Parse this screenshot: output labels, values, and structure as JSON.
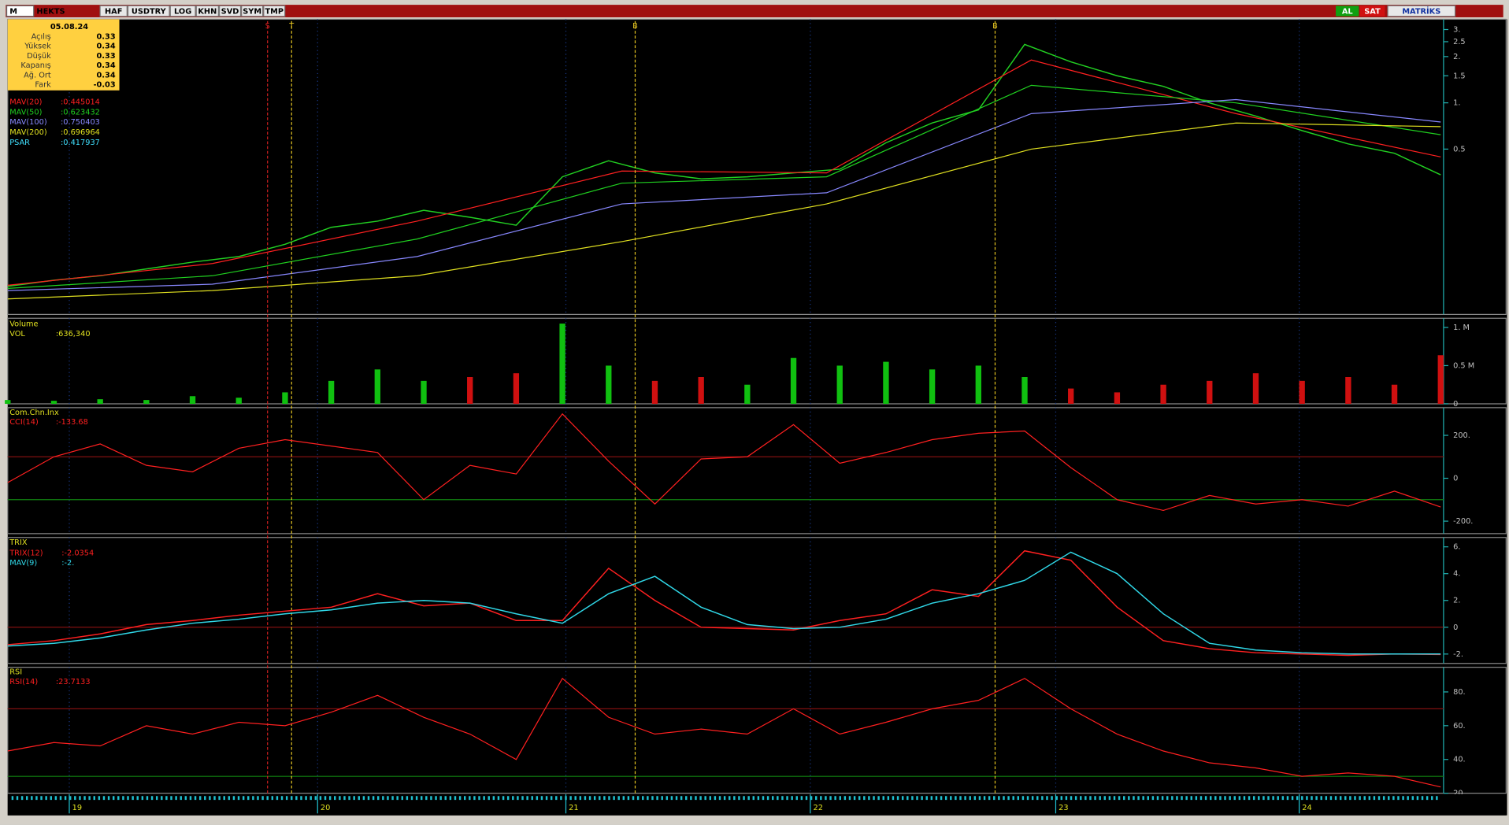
{
  "toolbar": {
    "logo": "M",
    "symbol": "HEKTS",
    "buttons": [
      "HAF",
      "USDTRY",
      "LOG",
      "KHN",
      "SVD",
      "SYM",
      "TMP"
    ],
    "buy": "AL",
    "sell": "SAT",
    "brand": "MATRİKS"
  },
  "info": {
    "date": "05.08.24",
    "rows": [
      {
        "label": "Açılış",
        "value": 0.33
      },
      {
        "label": "Yüksek",
        "value": 0.34
      },
      {
        "label": "Düşük",
        "value": 0.33
      },
      {
        "label": "Kapanış",
        "value": 0.34
      },
      {
        "label": "Ağ. Ort",
        "value": 0.34
      },
      {
        "label": "Fark",
        "value": -0.03
      }
    ]
  },
  "price_panel": {
    "log_scale": true,
    "ylim": [
      0.042,
      3.5
    ],
    "yticks": [
      {
        "value": 3,
        "label": "3."
      },
      2.5,
      {
        "value": 2,
        "label": "2."
      },
      1.5,
      {
        "value": 1,
        "label": "1."
      },
      0.5
    ],
    "close": {
      "color": "#22d022",
      "values": [
        0.064,
        0.07,
        0.075,
        0.083,
        0.092,
        0.1,
        0.12,
        0.155,
        0.17,
        0.2,
        0.18,
        0.16,
        0.33,
        0.42,
        0.35,
        0.32,
        0.33,
        0.35,
        0.37,
        0.55,
        0.74,
        0.9,
        2.4,
        1.85,
        1.5,
        1.28,
        1.0,
        0.82,
        0.66,
        0.54,
        0.47,
        0.34
      ]
    },
    "indicators": [
      {
        "name": "MAV(20)",
        "value": ":0.445014",
        "color": "#ff2020",
        "values": [
          0.065,
          0.09,
          0.17,
          0.36,
          0.35,
          1.9,
          0.85,
          0.445
        ]
      },
      {
        "name": "MAV(50)",
        "value": ":0.623432",
        "color": "#20d020",
        "values": [
          0.062,
          0.075,
          0.13,
          0.3,
          0.33,
          1.3,
          1.0,
          0.62
        ]
      },
      {
        "name": "MAV(100)",
        "value": ":0.750403",
        "color": "#8888ff",
        "values": [
          0.06,
          0.066,
          0.1,
          0.22,
          0.26,
          0.85,
          1.05,
          0.75
        ]
      },
      {
        "name": "MAV(200)",
        "value": ":0.696964",
        "color": "#e0e020",
        "values": [
          0.053,
          0.06,
          0.075,
          0.125,
          0.22,
          0.5,
          0.74,
          0.7
        ]
      },
      {
        "name": "PSAR",
        "value": ":0.417937",
        "color": "#40e0ff"
      }
    ]
  },
  "signals": [
    {
      "label": "S",
      "color": "#d02020"
    },
    {
      "label": "T",
      "color": "#e0c020"
    },
    {
      "label": "B",
      "color": "#e0c020"
    },
    {
      "label": "B",
      "color": "#e0c020"
    }
  ],
  "volume_panel": {
    "title": "Volume",
    "name": "VOL",
    "value": ":636,340",
    "ylim": [
      0,
      1.12
    ],
    "yticks": [
      {
        "value": 1,
        "label": "1. M"
      },
      {
        "value": 0.5,
        "label": "0.5 M"
      },
      0
    ],
    "up_color": "#10c010",
    "down_color": "#d01010",
    "values": [
      0.05,
      0.04,
      0.06,
      0.05,
      0.1,
      0.08,
      0.15,
      0.3,
      0.45,
      0.3,
      0.35,
      0.4,
      1.05,
      0.5,
      0.3,
      0.35,
      0.25,
      0.6,
      0.5,
      0.55,
      0.45,
      0.5,
      0.35,
      0.2,
      0.15,
      0.25,
      0.3,
      0.4,
      0.3,
      0.35,
      0.25,
      0.636
    ]
  },
  "cci_panel": {
    "title": "Com.Chn.Inx",
    "name": "CCI(14)",
    "value": ":-133.68",
    "color": "#ff2020",
    "ylim": [
      -258,
      329
    ],
    "yticks": [
      {
        "value": 200,
        "label": "200."
      },
      0,
      {
        "value": -200,
        "label": "-200."
      }
    ],
    "levels": [
      {
        "value": 100,
        "color": "#801010"
      },
      {
        "value": -100,
        "color": "#108010"
      }
    ],
    "values": [
      -20,
      100,
      160,
      60,
      30,
      140,
      180,
      150,
      120,
      -100,
      60,
      20,
      300,
      80,
      -120,
      90,
      100,
      250,
      70,
      120,
      180,
      210,
      220,
      50,
      -100,
      -150,
      -80,
      -120,
      -100,
      -130,
      -60,
      -134
    ]
  },
  "trix_panel": {
    "title": "TRIX",
    "ylim": [
      -2.7,
      6.7
    ],
    "yticks": [
      {
        "value": 6,
        "label": "6."
      },
      {
        "value": 4,
        "label": "4."
      },
      {
        "value": 2,
        "label": "2."
      },
      0,
      {
        "value": -2,
        "label": "-2."
      }
    ],
    "levels": [
      {
        "value": 0,
        "color": "#801010"
      }
    ],
    "series": [
      {
        "name": "TRIX(12)",
        "value": ":-2.0354",
        "color": "#ff2020",
        "values": [
          -1.3,
          -1,
          -0.5,
          0.2,
          0.5,
          0.9,
          1.2,
          1.5,
          2.5,
          1.6,
          1.8,
          0.5,
          0.5,
          4.4,
          2.0,
          0,
          -0.1,
          -0.2,
          0.5,
          1.0,
          2.8,
          2.3,
          5.7,
          5.0,
          1.5,
          -1.0,
          -1.6,
          -1.9,
          -2.0,
          -2.1,
          -2.0,
          -2.03
        ]
      },
      {
        "name": "MAV(9)",
        "value": ":-2.",
        "color": "#30d8e8",
        "values": [
          -1.4,
          -1.2,
          -0.8,
          -0.2,
          0.3,
          0.6,
          1.0,
          1.3,
          1.8,
          2.0,
          1.8,
          1.0,
          0.3,
          2.5,
          3.8,
          1.5,
          0.2,
          -0.1,
          0.0,
          0.6,
          1.8,
          2.5,
          3.5,
          5.6,
          4.0,
          1.0,
          -1.2,
          -1.7,
          -1.9,
          -2.0,
          -2.0,
          -2.0
        ]
      }
    ]
  },
  "rsi_panel": {
    "title": "RSI",
    "name": "RSI(14)",
    "value": ":23.7133",
    "color": "#ff2020",
    "ylim": [
      20,
      94.6
    ],
    "yticks": [
      {
        "value": 80,
        "label": "80."
      },
      {
        "value": 60,
        "label": "60."
      },
      {
        "value": 40,
        "label": "40."
      },
      {
        "value": 20,
        "label": "20."
      }
    ],
    "levels": [
      {
        "value": 70,
        "color": "#801010"
      },
      {
        "value": 30,
        "color": "#108010"
      }
    ],
    "values": [
      45,
      50,
      48,
      60,
      55,
      62,
      60,
      68,
      78,
      65,
      55,
      40,
      88,
      65,
      55,
      58,
      55,
      70,
      55,
      62,
      70,
      75,
      88,
      70,
      55,
      45,
      38,
      35,
      30,
      32,
      30,
      23.7
    ]
  },
  "date_axis": [
    "19",
    "20",
    "21",
    "22",
    "23",
    "24"
  ]
}
